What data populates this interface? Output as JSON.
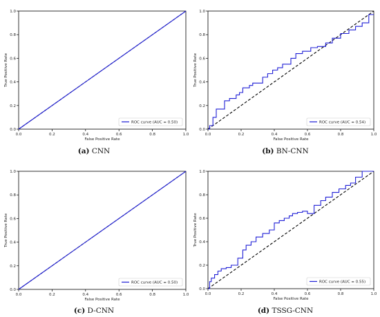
{
  "chart_data": [
    {
      "type": "line",
      "caption_label": "(a)",
      "caption_text": "CNN",
      "xlabel": "False Positive Rate",
      "ylabel": "True Positive Rate",
      "xlim": [
        0,
        1
      ],
      "ylim": [
        0,
        1
      ],
      "xticks": [
        "0.0",
        "0.2",
        "0.4",
        "0.6",
        "0.8",
        "1.0"
      ],
      "yticks": [
        "0.0",
        "0.2",
        "0.4",
        "0.6",
        "0.8",
        "1.0"
      ],
      "legend": "ROC curve (AUC = 0.50)",
      "legend_position": "lower-right",
      "diagonal": true,
      "series": [
        {
          "name": "ROC curve (AUC = 0.50)",
          "color": "#1f1fd6",
          "x": [
            0,
            1
          ],
          "y": [
            0,
            1
          ]
        }
      ]
    },
    {
      "type": "line",
      "caption_label": "(b)",
      "caption_text": "BN-CNN",
      "xlabel": "False Positive Rate",
      "ylabel": "True Positive Rate",
      "xlim": [
        0,
        1
      ],
      "ylim": [
        0,
        1
      ],
      "xticks": [
        "0.0",
        "0.2",
        "0.4",
        "0.6",
        "0.8",
        "1.0"
      ],
      "yticks": [
        "0.0",
        "0.2",
        "0.4",
        "0.6",
        "0.8",
        "1.0"
      ],
      "legend": "ROC curve (AUC = 0.54)",
      "legend_position": "lower-right",
      "diagonal": true,
      "series": [
        {
          "name": "ROC curve (AUC = 0.54)",
          "color": "#1f1fd6",
          "x": [
            0,
            0.01,
            0.01,
            0.03,
            0.03,
            0.05,
            0.05,
            0.1,
            0.1,
            0.13,
            0.13,
            0.17,
            0.17,
            0.19,
            0.19,
            0.21,
            0.21,
            0.25,
            0.25,
            0.27,
            0.27,
            0.33,
            0.33,
            0.36,
            0.36,
            0.39,
            0.39,
            0.42,
            0.42,
            0.45,
            0.45,
            0.5,
            0.5,
            0.53,
            0.53,
            0.57,
            0.57,
            0.62,
            0.62,
            0.66,
            0.66,
            0.71,
            0.71,
            0.75,
            0.75,
            0.8,
            0.8,
            0.85,
            0.85,
            0.89,
            0.89,
            0.93,
            0.93,
            0.97,
            0.97,
            1.0
          ],
          "y": [
            0,
            0,
            0.03,
            0.03,
            0.1,
            0.1,
            0.17,
            0.17,
            0.24,
            0.24,
            0.26,
            0.26,
            0.29,
            0.29,
            0.31,
            0.31,
            0.35,
            0.35,
            0.37,
            0.37,
            0.39,
            0.39,
            0.44,
            0.44,
            0.47,
            0.47,
            0.5,
            0.5,
            0.52,
            0.52,
            0.55,
            0.55,
            0.6,
            0.6,
            0.64,
            0.64,
            0.66,
            0.66,
            0.69,
            0.69,
            0.7,
            0.7,
            0.73,
            0.73,
            0.77,
            0.77,
            0.81,
            0.81,
            0.84,
            0.84,
            0.87,
            0.87,
            0.9,
            0.9,
            0.97,
            0.97
          ]
        }
      ]
    },
    {
      "type": "line",
      "caption_label": "(c)",
      "caption_text": "D-CNN",
      "xlabel": "False Positive Rate",
      "ylabel": "True Positive Rate",
      "xlim": [
        0,
        1
      ],
      "ylim": [
        0,
        1
      ],
      "xticks": [
        "0.0",
        "0.2",
        "0.4",
        "0.6",
        "0.8",
        "1.0"
      ],
      "yticks": [
        "0.0",
        "0.2",
        "0.4",
        "0.6",
        "0.8",
        "1.0"
      ],
      "legend": "ROC curve (AUC = 0.50)",
      "legend_position": "lower-right",
      "diagonal": true,
      "series": [
        {
          "name": "ROC curve (AUC = 0.50)",
          "color": "#1f1fd6",
          "x": [
            0,
            1
          ],
          "y": [
            0,
            1
          ]
        }
      ]
    },
    {
      "type": "line",
      "caption_label": "(d)",
      "caption_text": "TSSG-CNN",
      "xlabel": "False Positive Rate",
      "ylabel": "True Positive Rate",
      "xlim": [
        0,
        1
      ],
      "ylim": [
        0,
        1
      ],
      "xticks": [
        "0.0",
        "0.2",
        "0.4",
        "0.6",
        "0.8",
        "1.0"
      ],
      "yticks": [
        "0.0",
        "0.2",
        "0.4",
        "0.6",
        "0.8",
        "1.0"
      ],
      "legend": "ROC curve (AUC = 0.55)",
      "legend_position": "lower-right",
      "diagonal": true,
      "series": [
        {
          "name": "ROC curve (AUC = 0.55)",
          "color": "#1f1fd6",
          "x": [
            0,
            0.01,
            0.01,
            0.02,
            0.02,
            0.04,
            0.04,
            0.06,
            0.06,
            0.08,
            0.08,
            0.11,
            0.11,
            0.14,
            0.14,
            0.18,
            0.18,
            0.21,
            0.21,
            0.23,
            0.23,
            0.26,
            0.26,
            0.29,
            0.29,
            0.33,
            0.33,
            0.37,
            0.37,
            0.4,
            0.4,
            0.43,
            0.43,
            0.46,
            0.46,
            0.49,
            0.49,
            0.51,
            0.51,
            0.54,
            0.54,
            0.57,
            0.57,
            0.6,
            0.6,
            0.64,
            0.64,
            0.68,
            0.68,
            0.71,
            0.71,
            0.75,
            0.75,
            0.79,
            0.79,
            0.83,
            0.83,
            0.86,
            0.86,
            0.89,
            0.89,
            0.93,
            0.93,
            0.95,
            0.95,
            1.0
          ],
          "y": [
            0,
            0,
            0.06,
            0.06,
            0.09,
            0.09,
            0.12,
            0.12,
            0.15,
            0.15,
            0.17,
            0.17,
            0.18,
            0.18,
            0.2,
            0.2,
            0.26,
            0.26,
            0.33,
            0.33,
            0.37,
            0.37,
            0.4,
            0.4,
            0.44,
            0.44,
            0.47,
            0.47,
            0.5,
            0.5,
            0.56,
            0.56,
            0.58,
            0.58,
            0.6,
            0.6,
            0.62,
            0.62,
            0.64,
            0.64,
            0.65,
            0.65,
            0.66,
            0.66,
            0.64,
            0.64,
            0.71,
            0.71,
            0.75,
            0.75,
            0.78,
            0.78,
            0.82,
            0.82,
            0.85,
            0.85,
            0.88,
            0.88,
            0.9,
            0.9,
            0.95,
            0.95,
            1.0,
            1.0,
            1.0,
            1.0
          ]
        }
      ]
    }
  ]
}
